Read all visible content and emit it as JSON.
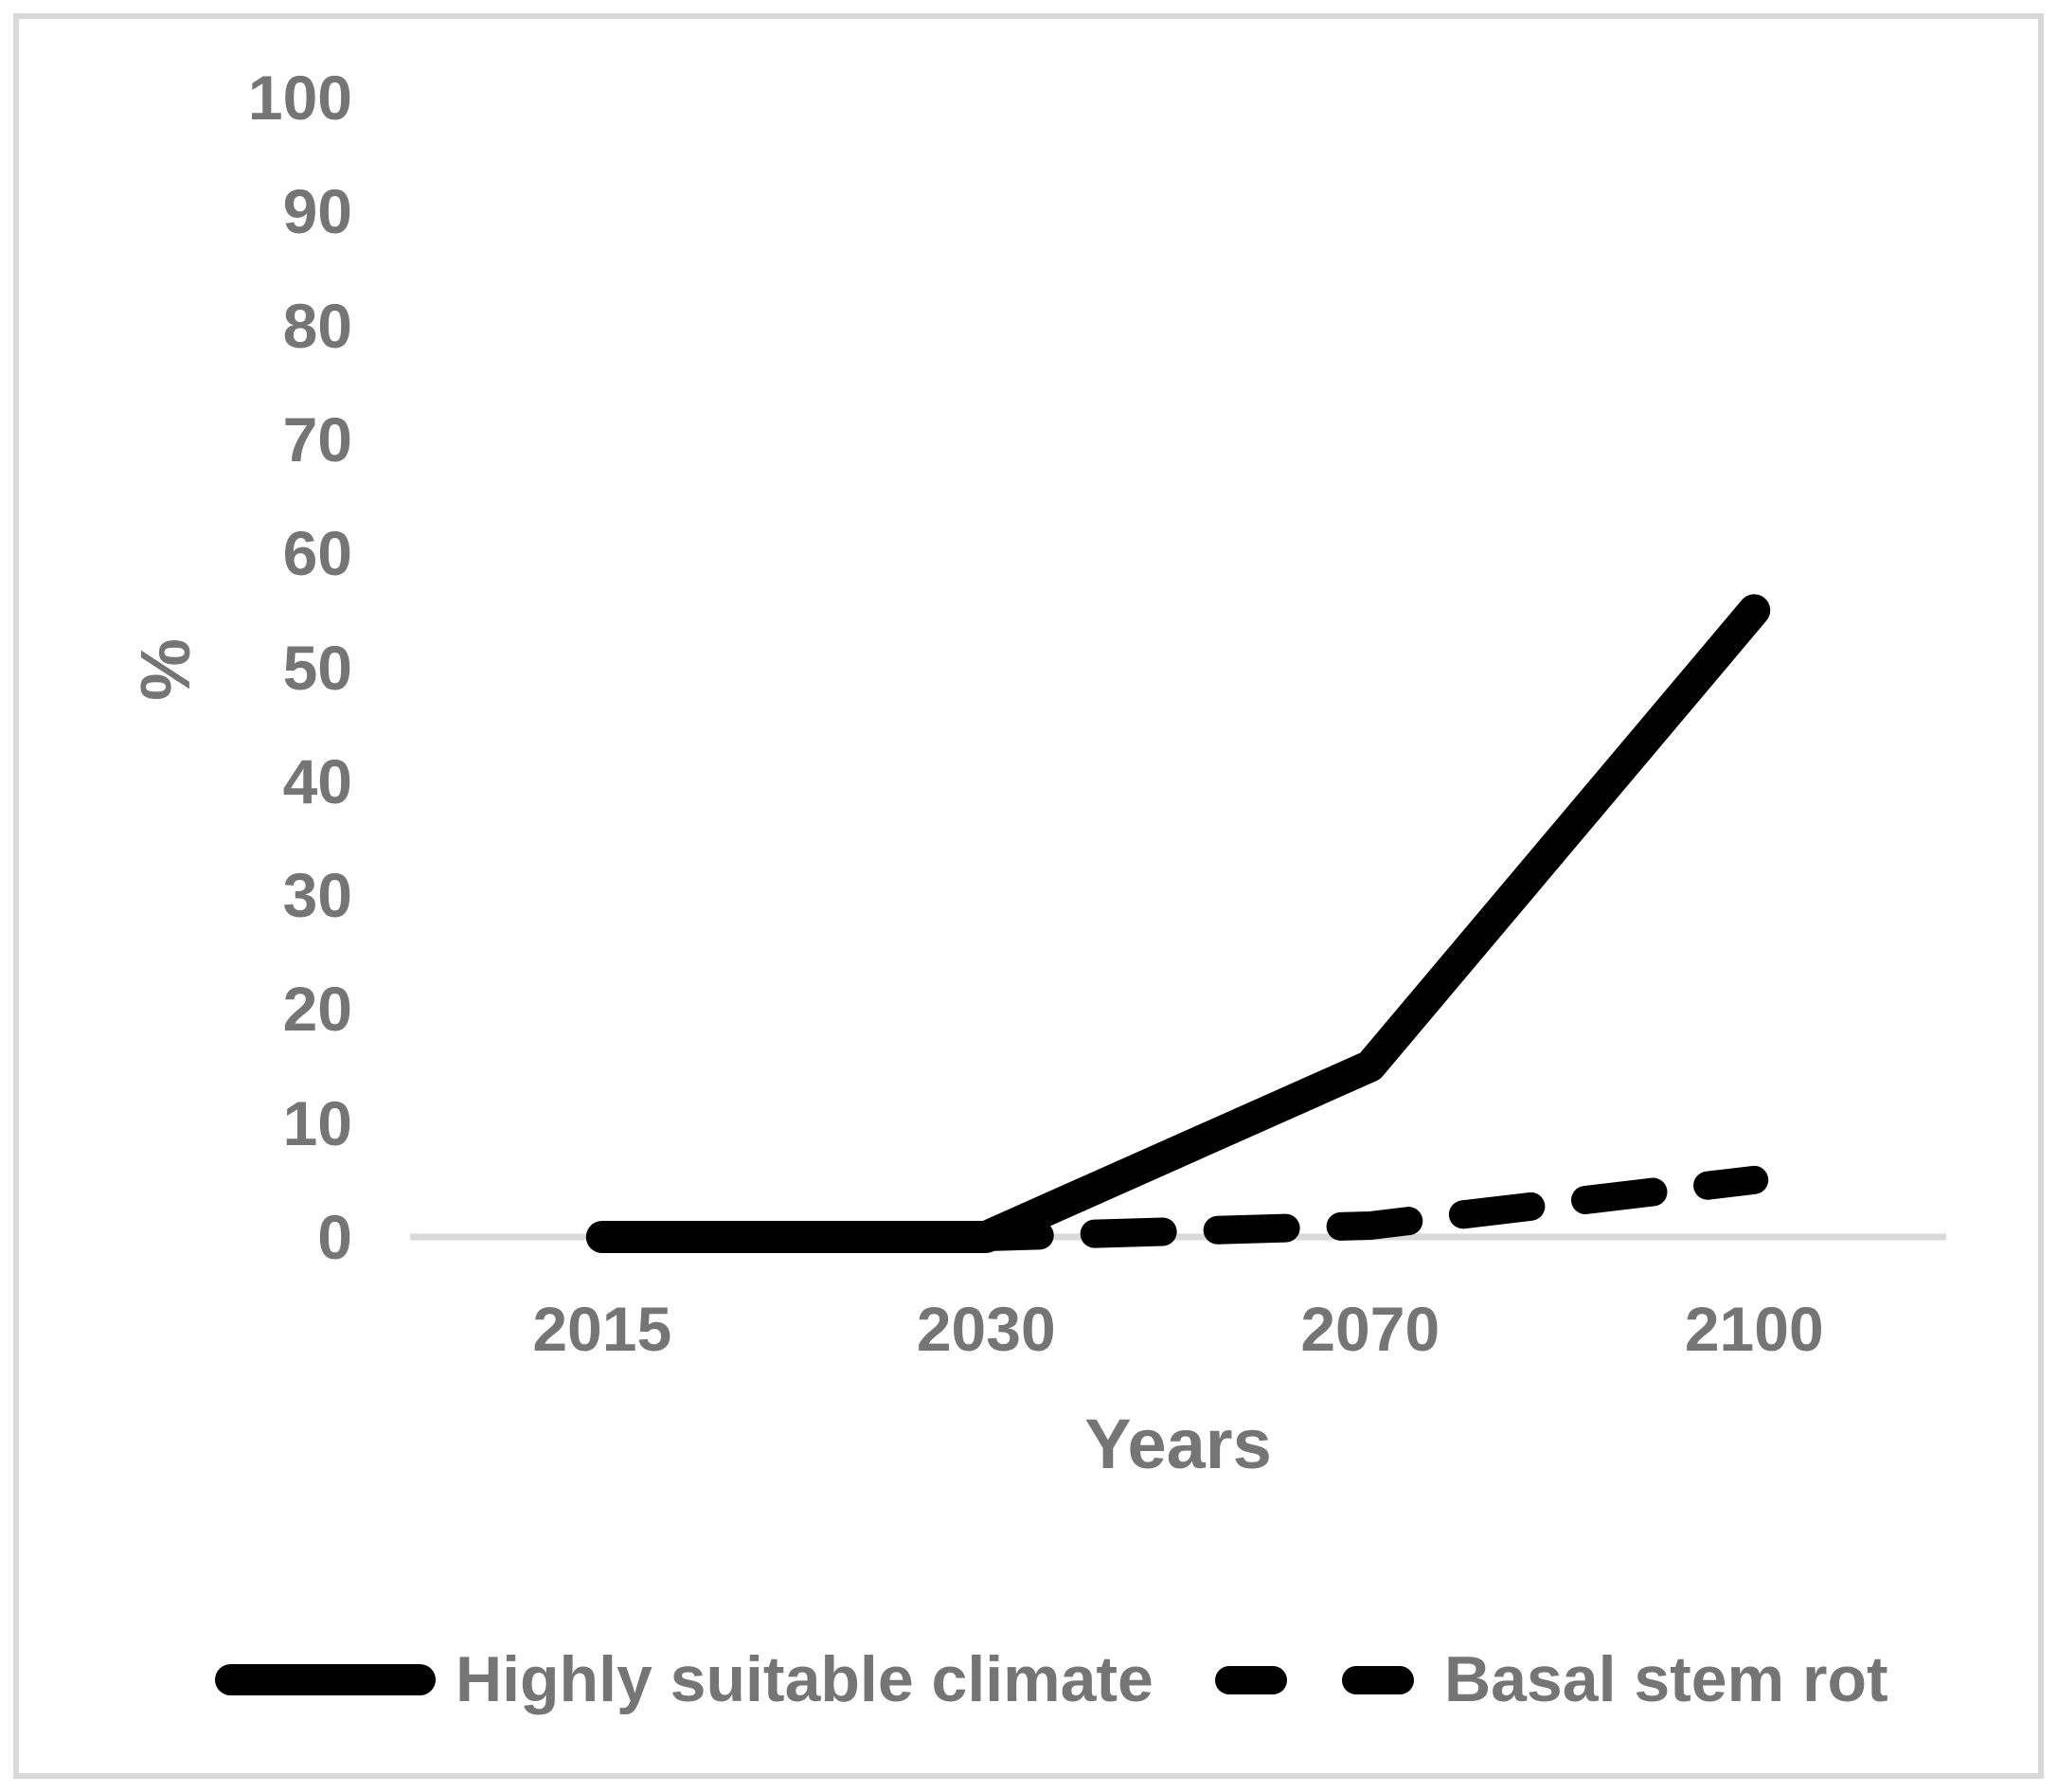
{
  "colors": {
    "text": "#757575",
    "axis_line": "#d9d9d9",
    "series_line": "#000000",
    "border": "#d9d9d9"
  },
  "chart_data": {
    "type": "line",
    "title": "",
    "categories": [
      "2015",
      "2030",
      "2070",
      "2100"
    ],
    "series": [
      {
        "name": "Highly suitable climate",
        "line_style": "solid",
        "values": [
          0,
          0,
          15,
          55
        ]
      },
      {
        "name": "Basal stem rot",
        "line_style": "dashed",
        "values": [
          0,
          0,
          1,
          5
        ]
      }
    ],
    "xlabel": "Years",
    "ylabel": "%",
    "ylim": [
      0,
      100
    ],
    "yticks": [
      0,
      10,
      20,
      30,
      40,
      50,
      60,
      70,
      80,
      90,
      100
    ],
    "grid": false,
    "legend_position": "bottom"
  }
}
